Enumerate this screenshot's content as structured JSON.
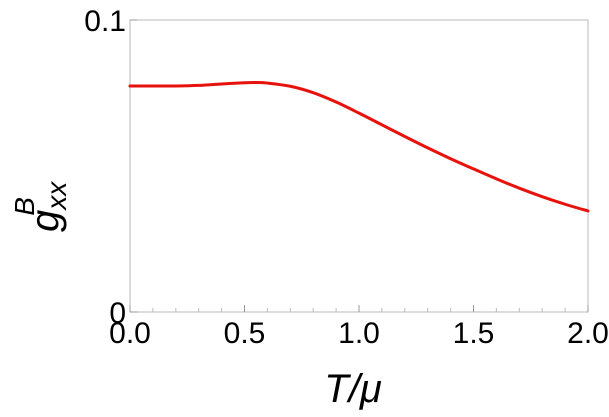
{
  "chart_data": {
    "type": "line",
    "title": "",
    "xlabel": "T/μ",
    "ylabel": {
      "base": "g",
      "superscript": "B",
      "subscript": "xx"
    },
    "xlim": [
      0.0,
      2.0
    ],
    "ylim": [
      0,
      0.1
    ],
    "x_ticks": [
      0.0,
      0.5,
      1.0,
      1.5,
      2.0
    ],
    "x_tick_labels": [
      "0.0",
      "0.5",
      "1.0",
      "1.5",
      "2.0"
    ],
    "y_ticks": [
      0,
      0.1
    ],
    "y_tick_labels": [
      "0",
      "0.1"
    ],
    "grid": false,
    "series": [
      {
        "color": "#e8120c",
        "x": [
          0.0,
          0.1,
          0.2,
          0.3,
          0.4,
          0.5,
          0.55,
          0.6,
          0.7,
          0.8,
          0.9,
          1.0,
          1.1,
          1.2,
          1.3,
          1.4,
          1.5,
          1.6,
          1.7,
          1.8,
          1.9,
          2.0
        ],
        "y": [
          0.0774,
          0.0774,
          0.0774,
          0.0776,
          0.0781,
          0.0785,
          0.0786,
          0.0784,
          0.0773,
          0.0751,
          0.0719,
          0.0681,
          0.0641,
          0.0601,
          0.0562,
          0.0525,
          0.049,
          0.0456,
          0.0424,
          0.0395,
          0.0369,
          0.0346
        ]
      }
    ]
  }
}
